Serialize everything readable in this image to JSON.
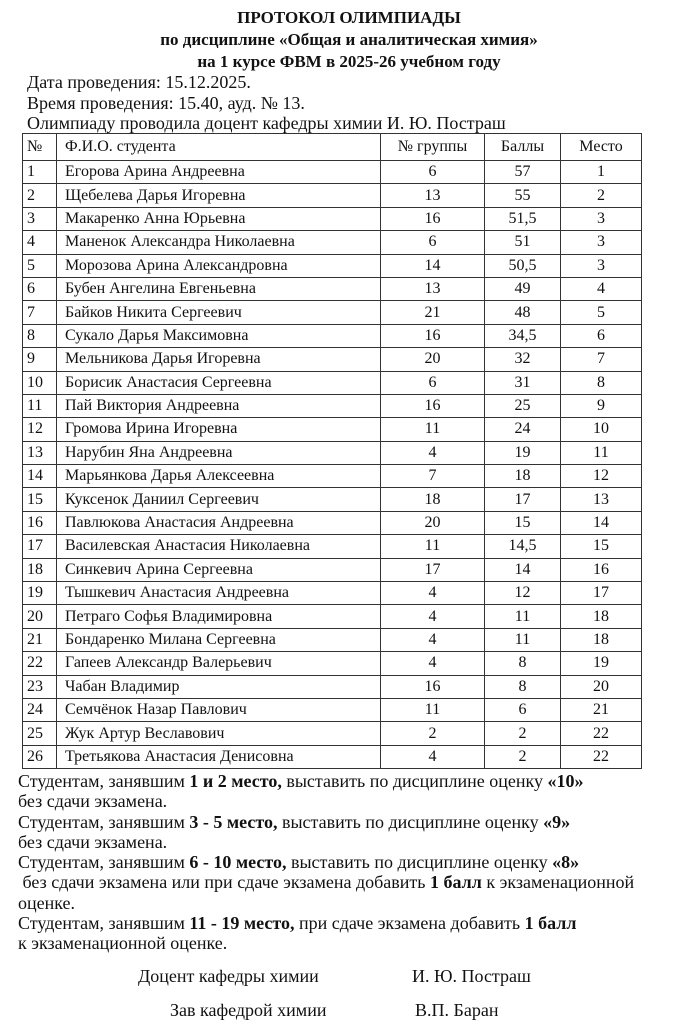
{
  "header": {
    "title": "ПРОТОКОЛ ОЛИМПИАДЫ",
    "subtitle1": "по дисциплине «Общая и аналитическая химия»",
    "subtitle2": "на 1 курсе ФВМ в 2025-26 учебном году"
  },
  "info": {
    "date": "Дата проведения: 15.12.2025.",
    "time": "Время проведения: 15.40, ауд. № 13.",
    "conductor": "Олимпиаду проводила доцент кафедры химии И. Ю. Постраш"
  },
  "table": {
    "columns": [
      "№",
      "Ф.И.О. студента",
      "№ группы",
      "Баллы",
      "Место"
    ],
    "rows": [
      [
        "1",
        "Егорова Арина Андреевна",
        "6",
        "57",
        "1"
      ],
      [
        "2",
        "Щебелева Дарья Игоревна",
        "13",
        "55",
        "2"
      ],
      [
        "3",
        "Макаренко Анна Юрьевна",
        "16",
        "51,5",
        "3"
      ],
      [
        "4",
        "Маненок Александра Николаевна",
        "6",
        "51",
        "3"
      ],
      [
        "5",
        "Морозова Арина Александровна",
        "14",
        "50,5",
        "3"
      ],
      [
        "6",
        "Бубен Ангелина Евгеньевна",
        "13",
        "49",
        "4"
      ],
      [
        "7",
        "Байков Никита Сергеевич",
        "21",
        "48",
        "5"
      ],
      [
        "8",
        "Сукало Дарья Максимовна",
        "16",
        "34,5",
        "6"
      ],
      [
        "9",
        "Мельникова Дарья Игоревна",
        "20",
        "32",
        "7"
      ],
      [
        "10",
        "Борисик Анастасия Сергеевна",
        "6",
        "31",
        "8"
      ],
      [
        "11",
        "Пай Виктория Андреевна",
        "16",
        "25",
        "9"
      ],
      [
        "12",
        "Громова Ирина Игоревна",
        "11",
        "24",
        "10"
      ],
      [
        "13",
        "Нарубин Яна Андреевна",
        "4",
        "19",
        "11"
      ],
      [
        "14",
        "Марьянкова Дарья Алексеевна",
        "7",
        "18",
        "12"
      ],
      [
        "15",
        "Куксенок Даниил Сергеевич",
        "18",
        "17",
        "13"
      ],
      [
        "16",
        "Павлюкова Анастасия Андреевна",
        "20",
        "15",
        "14"
      ],
      [
        "17",
        "Василевская Анастасия Николаевна",
        "11",
        "14,5",
        "15"
      ],
      [
        "18",
        "Синкевич Арина Сергеевна",
        "17",
        "14",
        "16"
      ],
      [
        "19",
        "Тышкевич Анастасия Андреевна",
        "4",
        "12",
        "17"
      ],
      [
        "20",
        "Петраго Софья Владимировна",
        "4",
        "11",
        "18"
      ],
      [
        "21",
        "Бондаренко Милана Сергеевна",
        "4",
        "11",
        "18"
      ],
      [
        "22",
        "Гапеев Александр Валерьевич",
        "4",
        "8",
        "19"
      ],
      [
        "23",
        "Чабан Владимир",
        "16",
        "8",
        "20"
      ],
      [
        "24",
        "Семчёнок Назар Павлович",
        "11",
        "6",
        "21"
      ],
      [
        "25",
        "Жук Артур Веславович",
        "2",
        "2",
        "22"
      ],
      [
        "26",
        "Третьякова Анастасия Денисовна",
        "4",
        "2",
        "22"
      ]
    ]
  },
  "notes": [
    {
      "a": "Студентам, занявшим ",
      "b": "1 и 2 место,",
      "c": " выставить по дисциплине оценку ",
      "d": "«10»",
      "e": "",
      "f": ""
    },
    {
      "a": "без сдачи экзамена.",
      "b": "",
      "c": "",
      "d": "",
      "e": "",
      "f": ""
    },
    {
      "a": "Студентам, занявшим ",
      "b": "3 - 5 место,",
      "c": " выставить по дисциплине оценку ",
      "d": "«9»",
      "e": "",
      "f": ""
    },
    {
      "a": "без сдачи экзамена.",
      "b": "",
      "c": "",
      "d": "",
      "e": "",
      "f": ""
    },
    {
      "a": "Студентам, занявшим ",
      "b": "6 - 10 место,",
      "c": " выставить по дисциплине оценку ",
      "d": "«8»",
      "e": "",
      "f": ""
    },
    {
      "a": " без сдачи экзамена или при сдаче экзамена добавить ",
      "b": "1 балл",
      "c": " к экзаменационной",
      "d": "",
      "e": "",
      "f": ""
    },
    {
      "a": "оценке.",
      "b": "",
      "c": "",
      "d": "",
      "e": "",
      "f": ""
    },
    {
      "a": "Студентам, занявшим ",
      "b": "11 - 19 место,",
      "c": " при сдаче экзамена добавить ",
      "d": "1 балл",
      "e": "",
      "f": ""
    },
    {
      "a": "к экзаменационной оценке.",
      "b": "",
      "c": "",
      "d": "",
      "e": "",
      "f": ""
    }
  ],
  "signatures": {
    "role1": "Доцент кафедры химии",
    "name1": "И. Ю. Постраш",
    "role2": "Зав кафедрой химии",
    "name2": "В.П. Баран"
  }
}
